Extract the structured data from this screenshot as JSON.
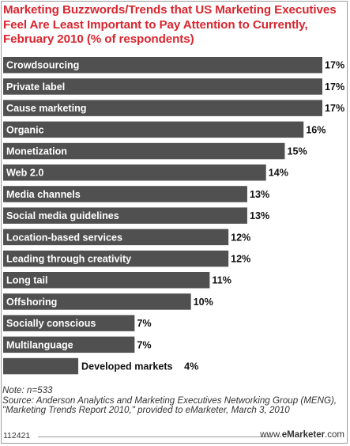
{
  "title": "Marketing Buzzwords/Trends that US Marketing Executives Feel Are Least Important to Pay Attention to Currently, February 2010 (% of respondents)",
  "notes": {
    "note": "Note: n=533",
    "source": "Source: Anderson Analytics and Marketing Executives Networking Group (MENG), \"Marketing Trends Report 2010,\" provided to eMarketer, March 3, 2010"
  },
  "footer": {
    "id": "112421",
    "brand_prefix": "www.",
    "brand_name": "eMarketer",
    "brand_suffix": ".com"
  },
  "colors": {
    "bar": "#505050",
    "title": "#d8262f"
  },
  "chart_data": {
    "type": "bar",
    "orientation": "horizontal",
    "unit": "%",
    "categories": [
      "Crowdsourcing",
      "Private label",
      "Cause marketing",
      "Organic",
      "Monetization",
      "Web 2.0",
      "Media channels",
      "Social media guidelines",
      "Location-based services",
      "Leading through creativity",
      "Long tail",
      "Offshoring",
      "Socially conscious",
      "Multilanguage",
      "Developed markets"
    ],
    "values": [
      17,
      17,
      17,
      16,
      15,
      14,
      13,
      13,
      12,
      12,
      11,
      10,
      7,
      7,
      4
    ],
    "value_labels": [
      "17%",
      "17%",
      "17%",
      "16%",
      "15%",
      "14%",
      "13%",
      "13%",
      "12%",
      "12%",
      "11%",
      "10%",
      "7%",
      "7%",
      "4%"
    ],
    "xlim": [
      0,
      17
    ],
    "grid": false,
    "legend": "none"
  }
}
